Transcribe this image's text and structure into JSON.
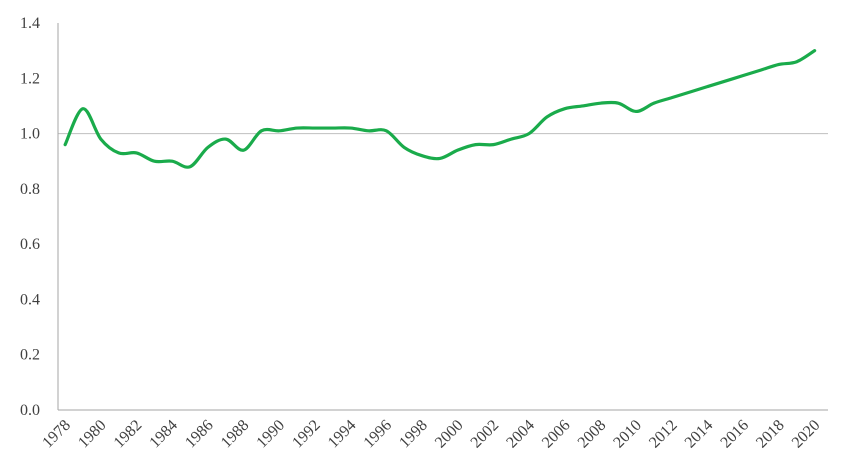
{
  "chart_data": {
    "type": "line",
    "title": "",
    "xlabel": "",
    "ylabel": "",
    "x": [
      1978,
      1979,
      1980,
      1981,
      1982,
      1983,
      1984,
      1985,
      1986,
      1987,
      1988,
      1989,
      1990,
      1991,
      1992,
      1993,
      1994,
      1995,
      1996,
      1997,
      1998,
      1999,
      2000,
      2001,
      2002,
      2003,
      2004,
      2005,
      2006,
      2007,
      2008,
      2009,
      2010,
      2011,
      2012,
      2013,
      2014,
      2015,
      2016,
      2017,
      2018,
      2019,
      2020
    ],
    "series": [
      {
        "color": "#1aab4b",
        "values": [
          0.96,
          1.09,
          0.98,
          0.93,
          0.93,
          0.9,
          0.9,
          0.88,
          0.95,
          0.98,
          0.94,
          1.01,
          1.01,
          1.02,
          1.02,
          1.02,
          1.02,
          1.01,
          1.01,
          0.95,
          0.92,
          0.91,
          0.94,
          0.96,
          0.96,
          0.98,
          1.0,
          1.06,
          1.09,
          1.1,
          1.11,
          1.11,
          1.08,
          1.11,
          1.13,
          1.15,
          1.17,
          1.19,
          1.21,
          1.23,
          1.25,
          1.26,
          1.3
        ]
      }
    ],
    "ylim": [
      0,
      1.4
    ],
    "yticks": [
      "0.0",
      "0.2",
      "0.4",
      "0.6",
      "0.8",
      "1.0",
      "1.2",
      "1.4"
    ],
    "xticks": [
      "1978",
      "1980",
      "1982",
      "1984",
      "1986",
      "1988",
      "1990",
      "1992",
      "1994",
      "1996",
      "1998",
      "2000",
      "2002",
      "2004",
      "2006",
      "2008",
      "2010",
      "2012",
      "2014",
      "2016",
      "2018",
      "2020"
    ],
    "reference_line": 1.0,
    "grid": false,
    "legend": "none"
  }
}
